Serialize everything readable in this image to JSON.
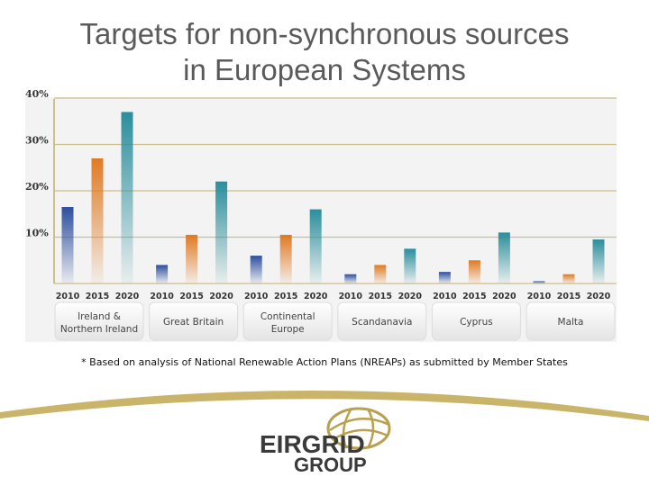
{
  "chart_data": {
    "type": "bar",
    "title": "Targets for non-synchronous sources in European Systems",
    "title_lines": [
      "Targets for non-synchronous sources",
      "in European Systems"
    ],
    "yticks": [
      "40%",
      "30%",
      "20%",
      "10%"
    ],
    "ylim": [
      0,
      40
    ],
    "years": [
      "2010",
      "2015",
      "2020"
    ],
    "groups": [
      {
        "lines": [
          "Ireland &",
          "Northern Ireland"
        ],
        "values": [
          16.5,
          27,
          37
        ]
      },
      {
        "lines": [
          "Great Britain"
        ],
        "values": [
          4,
          10.5,
          22
        ]
      },
      {
        "lines": [
          "Continental",
          "Europe"
        ],
        "values": [
          6,
          10.5,
          16
        ]
      },
      {
        "lines": [
          "Scandanavia"
        ],
        "values": [
          2,
          4,
          7.5
        ]
      },
      {
        "lines": [
          "Cyprus"
        ],
        "values": [
          2.5,
          5,
          11
        ]
      },
      {
        "lines": [
          "Malta"
        ],
        "values": [
          0.5,
          2,
          9.5
        ]
      }
    ],
    "series_colors": [
      "#2d4f9e",
      "#e07a22",
      "#2a8e9c"
    ]
  },
  "footnote": "* Based on analysis of  National Renewable Action Plans (NREAPs) as submitted by Member States",
  "logo": {
    "word": "EIRGRID",
    "sub": "GROUP"
  },
  "colors": {
    "gold": "#c9b46a",
    "grid": "#cdbf8a",
    "logo_gold": "#b8a04e"
  }
}
